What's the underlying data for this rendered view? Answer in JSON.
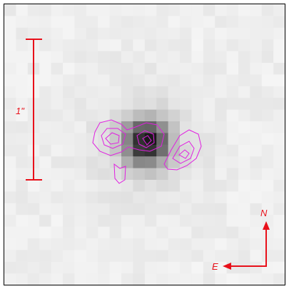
{
  "scale_bar": {
    "label": "1\""
  },
  "compass": {
    "north": "N",
    "east": "E"
  }
}
